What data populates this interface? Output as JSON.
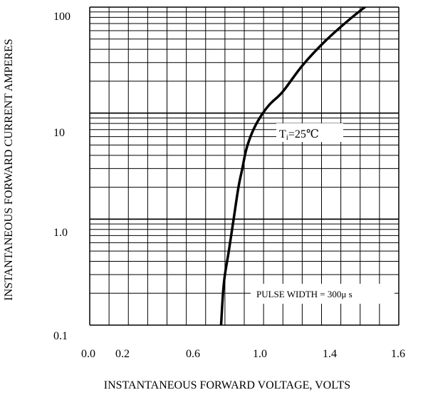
{
  "chart_data": {
    "type": "line",
    "xlabel": "INSTANTANEOUS FORWARD VOLTAGE, VOLTS",
    "ylabel": "INSTANTANEOUS FORWARD CURRENT AMPERES",
    "x_tick_labels": [
      "0.0",
      "0.2",
      "0.6",
      "1.0",
      "1.4",
      "1.6"
    ],
    "y_tick_labels": [
      "100",
      "10",
      "1.0",
      "0.1"
    ],
    "xlim": [
      0.0,
      1.6
    ],
    "ylim": [
      0.1,
      100
    ],
    "y_scale": "log",
    "grid": true,
    "annotations": {
      "temperature_main": "T",
      "temperature_sub": "i",
      "temperature_value": "=25℃",
      "pulse": "PULSE WIDTH = 300μ s"
    },
    "series": [
      {
        "x": [
          0.68,
          0.69,
          0.7,
          0.72,
          0.745,
          0.77,
          0.79,
          0.81,
          0.84,
          0.88,
          0.93,
          1.0,
          1.1,
          1.22,
          1.35,
          1.48
        ],
        "y": [
          0.1,
          0.2,
          0.3,
          0.5,
          1.0,
          2.0,
          3.0,
          4.5,
          6.5,
          9.0,
          12.0,
          16.0,
          28.0,
          48.0,
          78.0,
          120.0
        ]
      }
    ],
    "style": {
      "line_color": "#000000",
      "grid_color": "#000000"
    }
  }
}
